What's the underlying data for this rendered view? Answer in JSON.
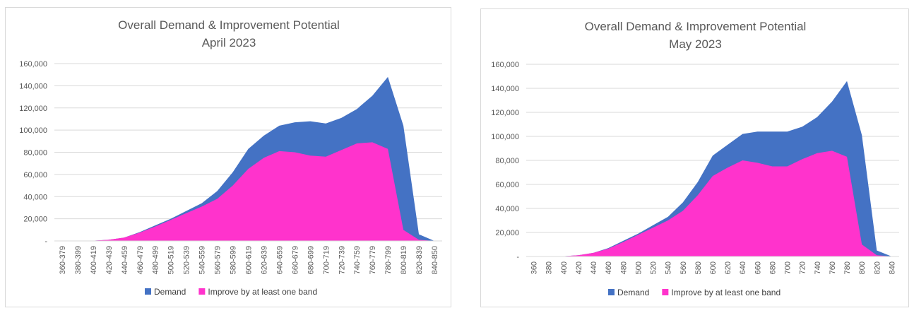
{
  "chart_data": [
    {
      "type": "area",
      "title_lines": [
        "Overall Demand & Improvement Potential",
        "April 2023"
      ],
      "xlabel": "",
      "ylabel": "",
      "ylim": [
        0,
        160000
      ],
      "y_ticks": [
        0,
        20000,
        40000,
        60000,
        80000,
        100000,
        120000,
        140000,
        160000
      ],
      "y_tick_labels": [
        "-",
        "20,000",
        "40,000",
        "60,000",
        "80,000",
        "100,000",
        "120,000",
        "140,000",
        "160,000"
      ],
      "grid": true,
      "legend_position": "bottom",
      "categories": [
        "360-379",
        "380-399",
        "400-419",
        "420-439",
        "440-459",
        "460-479",
        "480-499",
        "500-519",
        "520-539",
        "540-559",
        "560-579",
        "580-599",
        "600-619",
        "620-639",
        "640-659",
        "660-679",
        "680-699",
        "700-719",
        "720-739",
        "740-759",
        "760-779",
        "780-799",
        "800-819",
        "820-839",
        "840-850"
      ],
      "series": [
        {
          "name": "Demand",
          "color": "#4472c4",
          "values": [
            0,
            0,
            200,
            1000,
            3000,
            8000,
            14000,
            20000,
            27000,
            34000,
            45000,
            62000,
            83000,
            95000,
            104000,
            107000,
            108000,
            106000,
            111000,
            119000,
            131000,
            148000,
            104000,
            6000,
            0
          ]
        },
        {
          "name": "Improve by at least one band",
          "color": "#ff33cc",
          "values": [
            0,
            0,
            200,
            1000,
            3000,
            7500,
            13000,
            19000,
            25000,
            31000,
            38000,
            50000,
            65000,
            75000,
            81000,
            80000,
            77000,
            76000,
            82000,
            88000,
            89000,
            83000,
            10000,
            1000,
            0
          ]
        }
      ]
    },
    {
      "type": "area",
      "title_lines": [
        "Overall Demand & Improvement Potential",
        "May 2023"
      ],
      "xlabel": "",
      "ylabel": "",
      "ylim": [
        0,
        160000
      ],
      "y_ticks": [
        0,
        20000,
        40000,
        60000,
        80000,
        100000,
        120000,
        140000,
        160000
      ],
      "y_tick_labels": [
        "-",
        "20,000",
        "40,000",
        "60,000",
        "80,000",
        "100,000",
        "120,000",
        "140,000",
        "160,000"
      ],
      "grid": true,
      "legend_position": "bottom",
      "categories": [
        "360",
        "380",
        "400",
        "420",
        "440",
        "460",
        "480",
        "500",
        "520",
        "540",
        "560",
        "580",
        "600",
        "620",
        "640",
        "660",
        "680",
        "700",
        "720",
        "740",
        "760",
        "780",
        "800",
        "820",
        "840"
      ],
      "series": [
        {
          "name": "Demand",
          "color": "#4472c4",
          "values": [
            0,
            0,
            200,
            1000,
            3000,
            7000,
            13000,
            19000,
            26000,
            33000,
            45000,
            62000,
            84000,
            93000,
            102000,
            104000,
            104000,
            104000,
            108000,
            116000,
            129000,
            146000,
            101000,
            5000,
            0
          ]
        },
        {
          "name": "Improve by at least one band",
          "color": "#ff33cc",
          "values": [
            0,
            0,
            200,
            1000,
            3000,
            6500,
            12000,
            18000,
            24000,
            30000,
            38000,
            51000,
            67000,
            74000,
            80000,
            78000,
            75000,
            75000,
            81000,
            86000,
            88000,
            83000,
            10000,
            1000,
            0
          ]
        }
      ]
    }
  ]
}
